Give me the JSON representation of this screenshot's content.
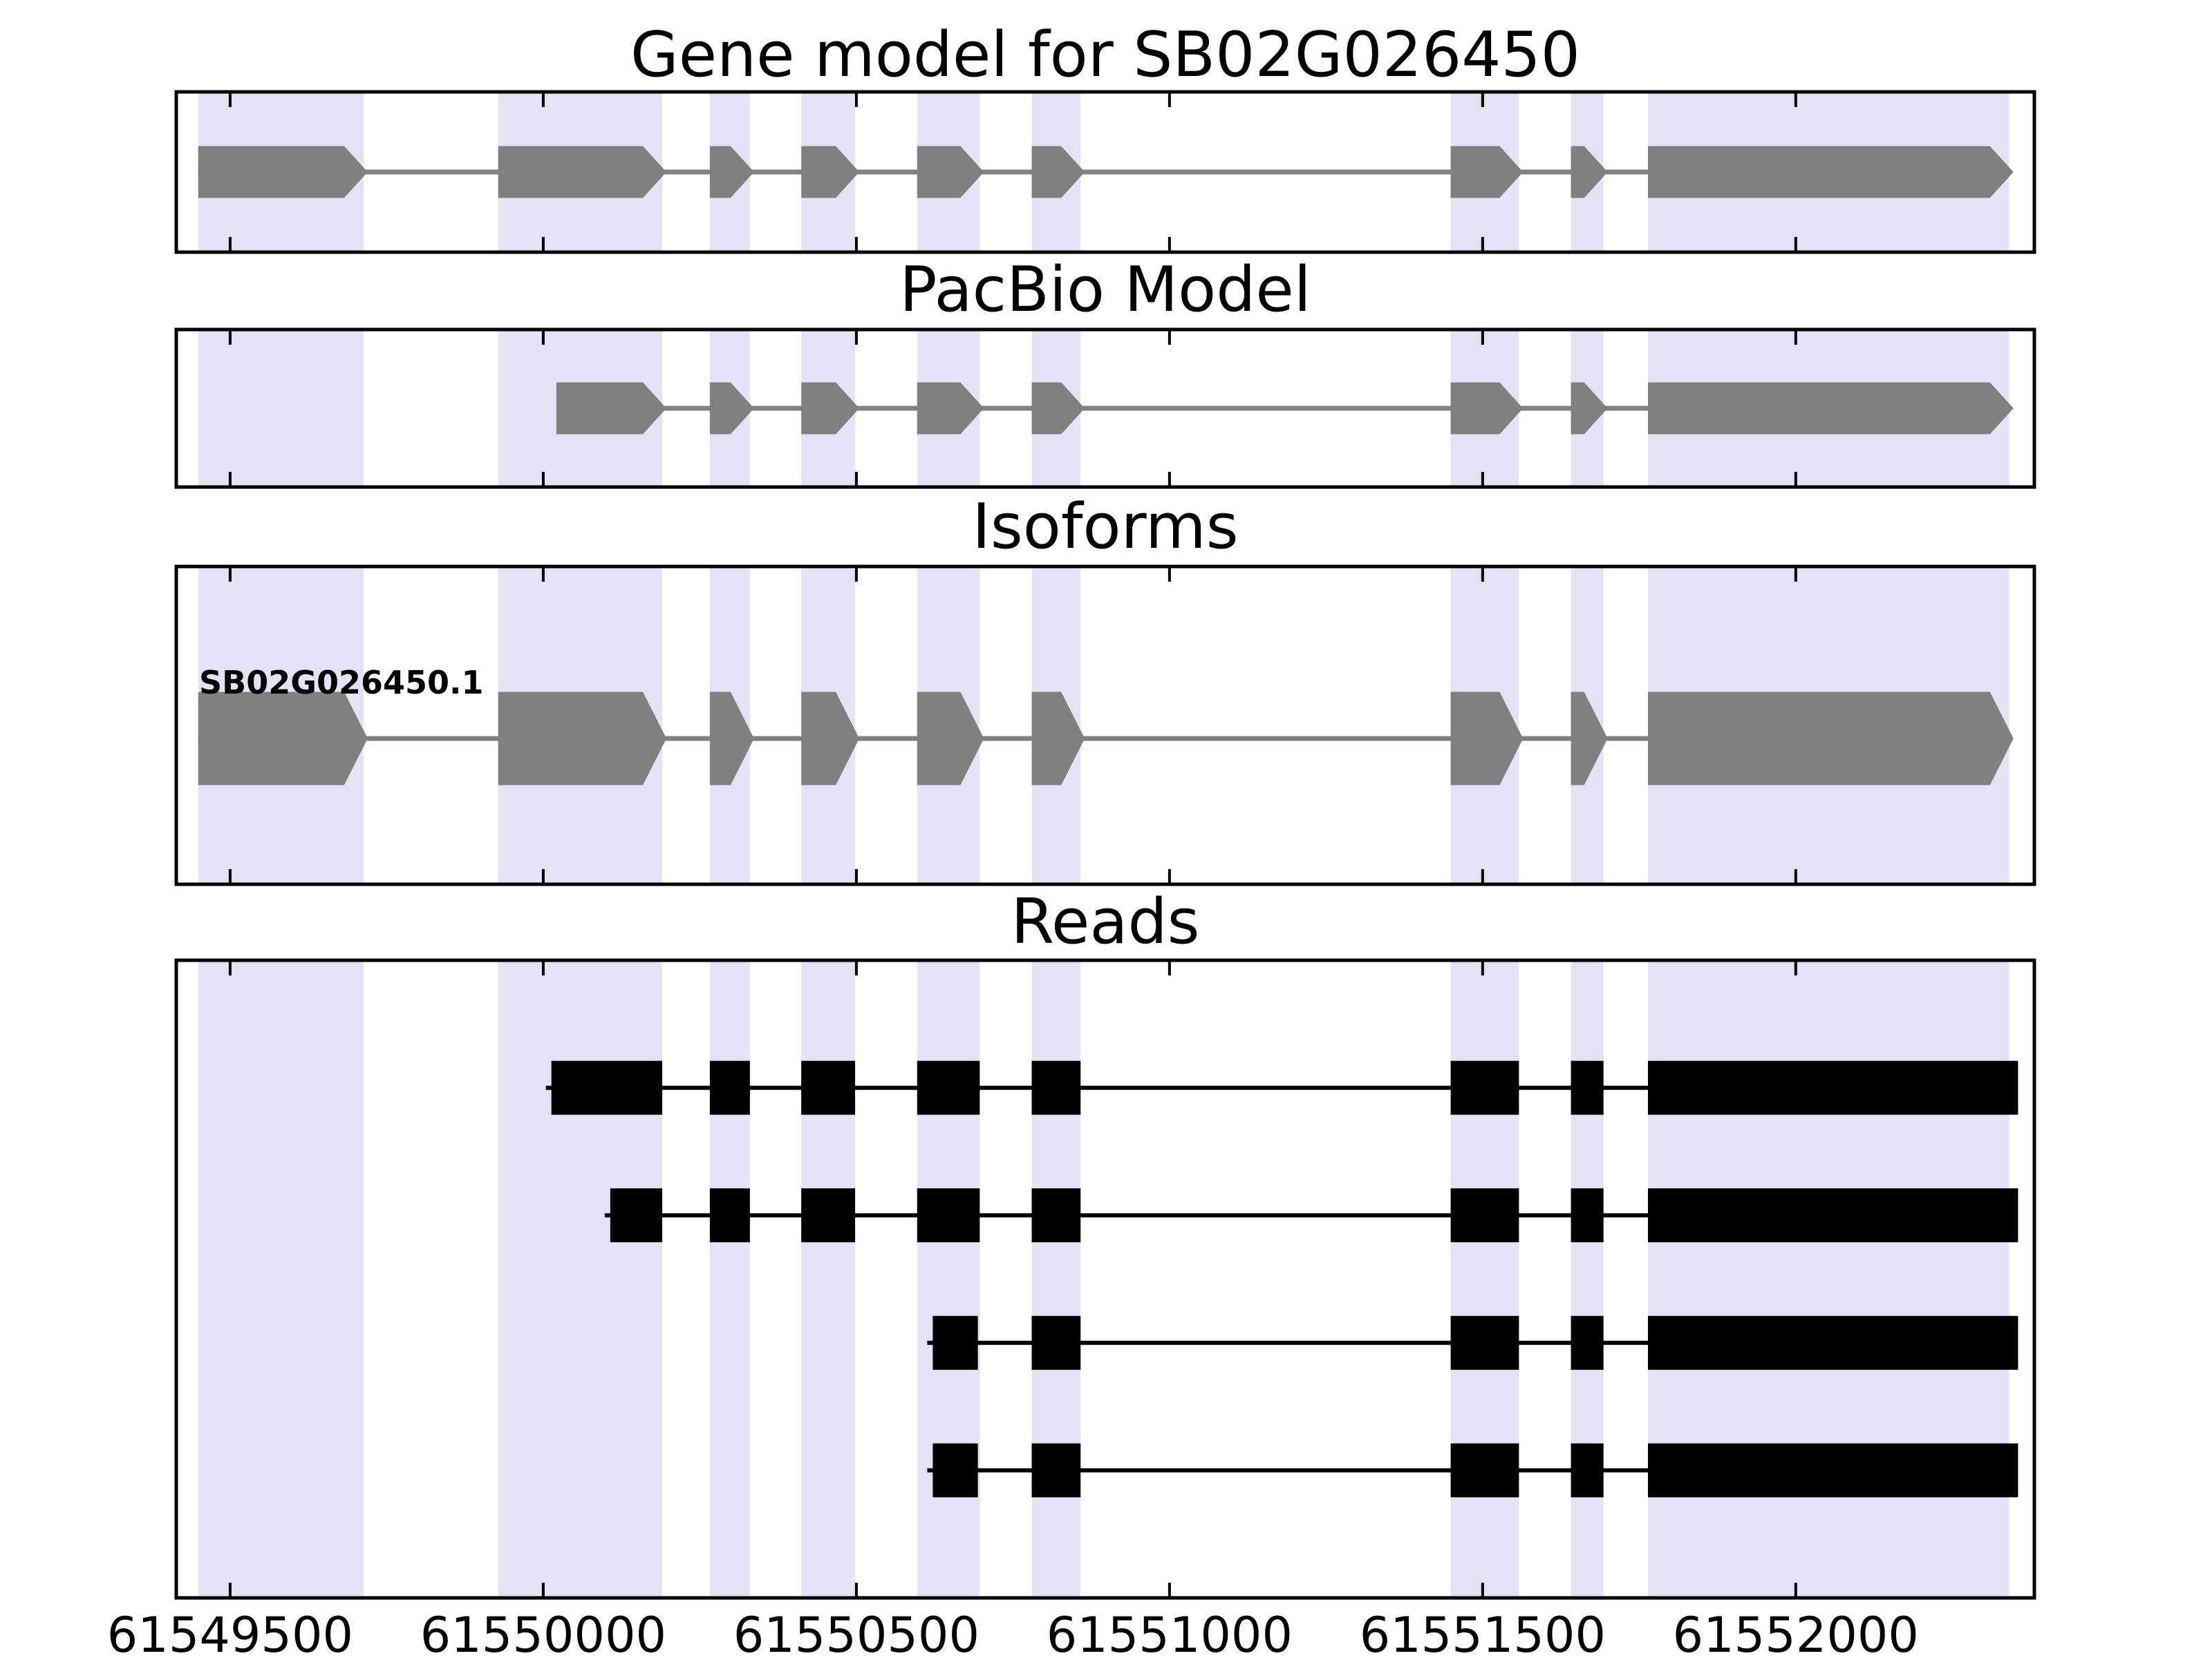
{
  "figure_title": "Gene model for SB02G026450",
  "panels": [
    {
      "title": "Gene model for SB02G026450"
    },
    {
      "title": "PacBio Model"
    },
    {
      "title": "Isoforms"
    },
    {
      "title": "Reads"
    }
  ],
  "colors": {
    "exon_gray": "#808080",
    "read_black": "#000000",
    "highlight": "#e3e3f5",
    "border": "#000000"
  },
  "chart_data": {
    "type": "genome-gene-structure-tracks",
    "x_axis": {
      "min": 61549414,
      "max": 61552381,
      "ticks": [
        61549500,
        61550000,
        61550500,
        61551000,
        61551500,
        61552000
      ]
    },
    "highlight_regions": [
      [
        61549449,
        61549713
      ],
      [
        61549928,
        61550190
      ],
      [
        61550266,
        61550330
      ],
      [
        61550412,
        61550498
      ],
      [
        61550597,
        61550697
      ],
      [
        61550780,
        61550858
      ],
      [
        61551449,
        61551558
      ],
      [
        61551641,
        61551693
      ],
      [
        61551764,
        61552341
      ]
    ],
    "tracks": [
      {
        "id": "gene_model",
        "title": "Gene model for SB02G026450",
        "style": "arrow",
        "color": "#808080",
        "exons": [
          [
            61549449,
            61549713
          ],
          [
            61549928,
            61550190
          ],
          [
            61550266,
            61550330
          ],
          [
            61550412,
            61550498
          ],
          [
            61550597,
            61550697
          ],
          [
            61550780,
            61550858
          ],
          [
            61551449,
            61551558
          ],
          [
            61551641,
            61551693
          ],
          [
            61551764,
            61552341
          ]
        ]
      },
      {
        "id": "pacbio_model",
        "title": "PacBio Model",
        "style": "arrow",
        "color": "#808080",
        "exons": [
          [
            61550021,
            61550190
          ],
          [
            61550266,
            61550330
          ],
          [
            61550412,
            61550498
          ],
          [
            61550597,
            61550697
          ],
          [
            61550780,
            61550858
          ],
          [
            61551449,
            61551558
          ],
          [
            61551641,
            61551693
          ],
          [
            61551764,
            61552341
          ]
        ]
      },
      {
        "id": "isoforms",
        "title": "Isoforms",
        "style": "arrow",
        "color": "#808080",
        "label": "SB02G026450.1",
        "exons": [
          [
            61549449,
            61549713
          ],
          [
            61549928,
            61550190
          ],
          [
            61550266,
            61550330
          ],
          [
            61550412,
            61550498
          ],
          [
            61550597,
            61550697
          ],
          [
            61550780,
            61550858
          ],
          [
            61551449,
            61551558
          ],
          [
            61551641,
            61551693
          ],
          [
            61551764,
            61552341
          ]
        ]
      },
      {
        "id": "reads",
        "title": "Reads",
        "style": "rect",
        "color": "#000000",
        "reads": [
          {
            "blocks": [
              [
                61550013,
                61550190
              ],
              [
                61550266,
                61550330
              ],
              [
                61550412,
                61550498
              ],
              [
                61550597,
                61550697
              ],
              [
                61550780,
                61550858
              ],
              [
                61551449,
                61551558
              ],
              [
                61551641,
                61551693
              ],
              [
                61551764,
                61552355
              ]
            ]
          },
          {
            "blocks": [
              [
                61550107,
                61550190
              ],
              [
                61550266,
                61550330
              ],
              [
                61550412,
                61550498
              ],
              [
                61550597,
                61550697
              ],
              [
                61550780,
                61550858
              ],
              [
                61551449,
                61551558
              ],
              [
                61551641,
                61551693
              ],
              [
                61551764,
                61552355
              ]
            ]
          },
          {
            "blocks": [
              [
                61550622,
                61550694
              ],
              [
                61550780,
                61550858
              ],
              [
                61551449,
                61551558
              ],
              [
                61551641,
                61551693
              ],
              [
                61551764,
                61552355
              ]
            ]
          },
          {
            "blocks": [
              [
                61550622,
                61550694
              ],
              [
                61550780,
                61550858
              ],
              [
                61551449,
                61551558
              ],
              [
                61551641,
                61551693
              ],
              [
                61551764,
                61552355
              ]
            ]
          }
        ]
      }
    ]
  }
}
